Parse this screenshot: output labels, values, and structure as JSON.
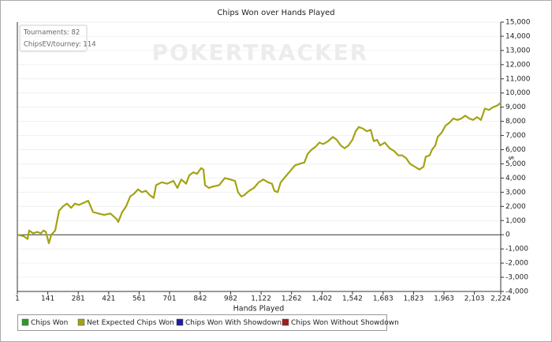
{
  "chart_data": {
    "type": "line",
    "title": "Chips Won over Hands Played",
    "xlabel": "Hands Played",
    "ylabel": "$",
    "watermark": "POKERTRACKER",
    "info": [
      "Tournaments: 82",
      "ChipsEV/tourney: 114"
    ],
    "x": [
      1,
      30,
      48,
      55,
      74,
      92,
      110,
      121,
      132,
      146,
      157,
      175,
      193,
      211,
      229,
      248,
      266,
      284,
      313,
      327,
      349,
      374,
      400,
      429,
      458,
      465,
      483,
      501,
      520,
      538,
      556,
      574,
      592,
      610,
      628,
      639,
      665,
      690,
      719,
      737,
      755,
      777,
      792,
      810,
      828,
      846,
      857,
      864,
      882,
      900,
      929,
      955,
      980,
      1002,
      1016,
      1031,
      1045,
      1067,
      1089,
      1111,
      1132,
      1154,
      1172,
      1183,
      1198,
      1212,
      1234,
      1256,
      1278,
      1299,
      1321,
      1336,
      1354,
      1372,
      1390,
      1408,
      1430,
      1452,
      1470,
      1488,
      1506,
      1524,
      1542,
      1557,
      1571,
      1589,
      1608,
      1626,
      1640,
      1655,
      1669,
      1691,
      1713,
      1734,
      1753,
      1771,
      1789,
      1807,
      1829,
      1850,
      1869,
      1879,
      1897,
      1908,
      1923,
      1934,
      1952,
      1970,
      1988,
      2006,
      2025,
      2043,
      2061,
      2079,
      2097,
      2115,
      2133,
      2151,
      2170,
      2188,
      2206,
      2224
    ],
    "series": [
      {
        "color": "#a3a314",
        "values": [
          0,
          -100,
          -300,
          300,
          100,
          200,
          100,
          300,
          200,
          -600,
          0,
          300,
          1700,
          2000,
          2200,
          1900,
          2200,
          2100,
          2300,
          2400,
          1600,
          1500,
          1400,
          1500,
          1100,
          900,
          1600,
          2000,
          2700,
          2900,
          3200,
          3000,
          3100,
          2800,
          2600,
          3500,
          3700,
          3600,
          3800,
          3300,
          3900,
          3600,
          4200,
          4400,
          4300,
          4700,
          4600,
          3500,
          3300,
          3400,
          3500,
          4000,
          3900,
          3800,
          3000,
          2700,
          2800,
          3100,
          3300,
          3700,
          3900,
          3700,
          3600,
          3100,
          3000,
          3700,
          4100,
          4500,
          4900,
          5000,
          5100,
          5700,
          6000,
          6200,
          6500,
          6400,
          6600,
          6900,
          6700,
          6300,
          6100,
          6300,
          6700,
          7300,
          7600,
          7500,
          7300,
          7400,
          6600,
          6700,
          6300,
          6500,
          6100,
          5900,
          5600,
          5600,
          5400,
          5000,
          4800,
          4600,
          4800,
          5500,
          5600,
          6000,
          6300,
          6900,
          7200,
          7700,
          7900,
          8200,
          8100,
          8200,
          8400,
          8200,
          8100,
          8300,
          8100,
          8900,
          8800,
          9000,
          9100,
          9300
        ]
      }
    ],
    "legend": [
      {
        "name": "Chips Won",
        "color": "#2e9a2e"
      },
      {
        "name": "Net Expected Chips Won",
        "color": "#a3a314"
      },
      {
        "name": "Chips Won With Showdown",
        "color": "#1f1f9e"
      },
      {
        "name": "Chips Won Without Showdown",
        "color": "#9e1f1f"
      }
    ],
    "xlim": [
      1,
      2224
    ],
    "xticks": [
      1,
      141,
      281,
      421,
      561,
      701,
      842,
      982,
      {
        "value": 1122,
        "label": "1,122"
      },
      {
        "value": 1262,
        "label": "1,262"
      },
      {
        "value": 1402,
        "label": "1,402"
      },
      {
        "value": 1542,
        "label": "1,542"
      },
      {
        "value": 1683,
        "label": "1,683"
      },
      {
        "value": 1823,
        "label": "1,823"
      },
      {
        "value": 1963,
        "label": "1,963"
      },
      {
        "value": 2103,
        "label": "2,103"
      },
      {
        "value": 2224,
        "label": "2,224"
      }
    ],
    "ylim": [
      -4000,
      15000
    ],
    "yticks": [
      {
        "value": -4000,
        "label": "-4,000"
      },
      {
        "value": -3000,
        "label": "-3,000"
      },
      {
        "value": -2000,
        "label": "-2,000"
      },
      {
        "value": -1000,
        "label": "-1,000"
      },
      0,
      {
        "value": 1000,
        "label": "1,000"
      },
      {
        "value": 2000,
        "label": "2,000"
      },
      {
        "value": 3000,
        "label": "3,000"
      },
      {
        "value": 4000,
        "label": "4,000"
      },
      {
        "value": 5000,
        "label": "5,000"
      },
      {
        "value": 6000,
        "label": "6,000"
      },
      {
        "value": 7000,
        "label": "7,000"
      },
      {
        "value": 8000,
        "label": "8,000"
      },
      {
        "value": 9000,
        "label": "9,000"
      },
      {
        "value": 10000,
        "label": "10,000"
      },
      {
        "value": 11000,
        "label": "11,000"
      },
      {
        "value": 12000,
        "label": "12,000"
      },
      {
        "value": 13000,
        "label": "13,000"
      },
      {
        "value": 14000,
        "label": "14,000"
      },
      {
        "value": 15000,
        "label": "15,000"
      }
    ],
    "grid": true
  }
}
